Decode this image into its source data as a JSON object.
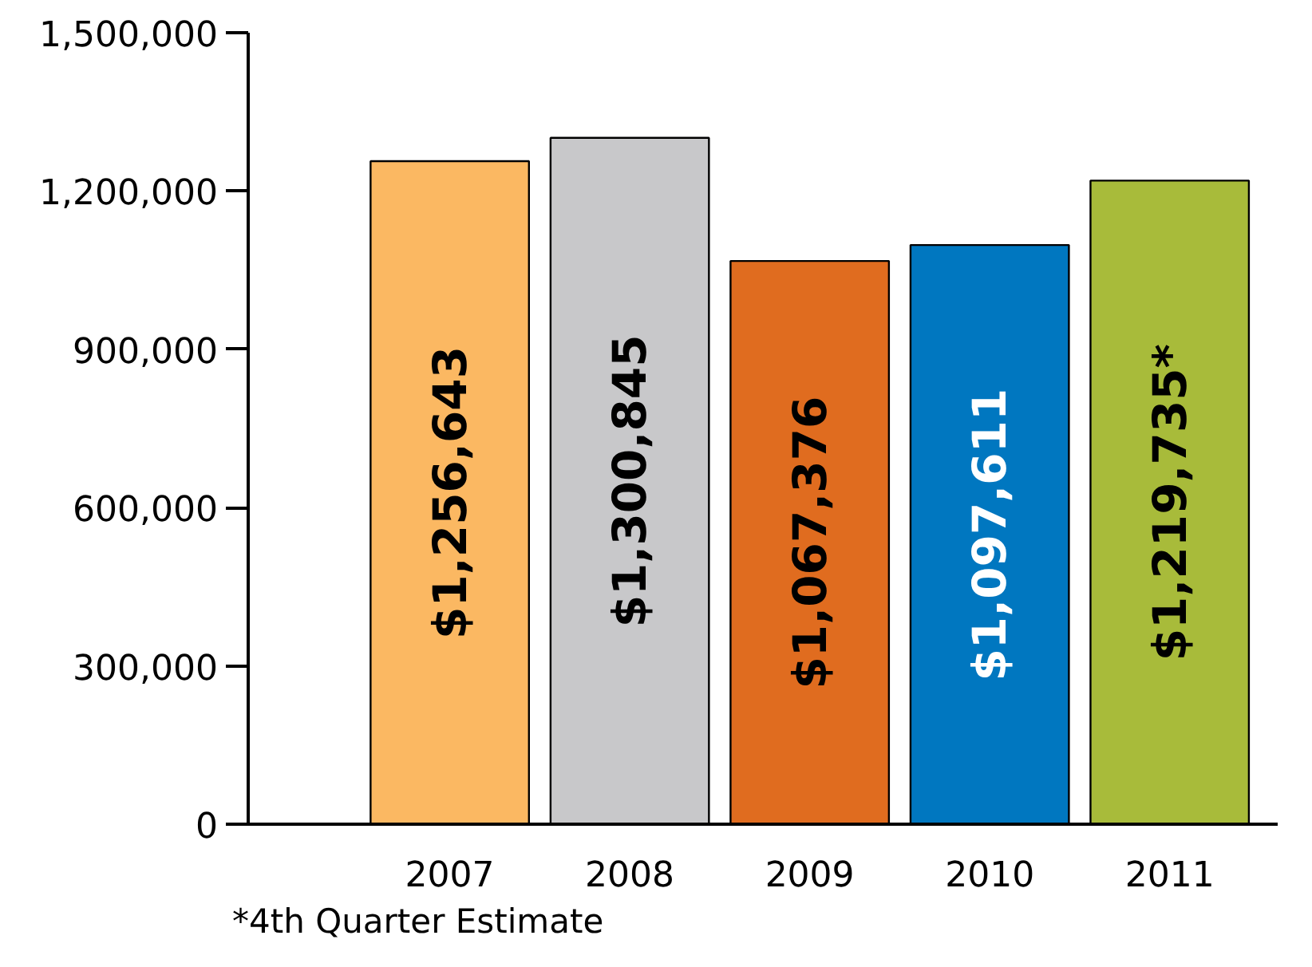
{
  "chart_data": {
    "type": "bar",
    "categories": [
      "2007",
      "2008",
      "2009",
      "2010",
      "2011"
    ],
    "values": [
      1256643,
      1300845,
      1067376,
      1097611,
      1219735
    ],
    "colors": [
      "#fbb862",
      "#c8c8ca",
      "#e06c1f",
      "#0077c0",
      "#a8bb3a"
    ],
    "value_labels": [
      "$1,256,643",
      "$1,300,845",
      "$1,067,376",
      "$1,097,611",
      "$1,219,735*"
    ],
    "ylim": [
      0,
      1500000
    ],
    "yticks": [
      {
        "value": 0,
        "label": "0"
      },
      {
        "value": 300000,
        "label": "300,000"
      },
      {
        "value": 600000,
        "label": "600,000"
      },
      {
        "value": 900000,
        "label": "900,000"
      },
      {
        "value": 1200000,
        "label": "1,200,000"
      },
      {
        "value": 1500000,
        "label": "1,500,000"
      }
    ],
    "grid": false,
    "annotations": [
      "*4th Quarter Estimate"
    ]
  }
}
